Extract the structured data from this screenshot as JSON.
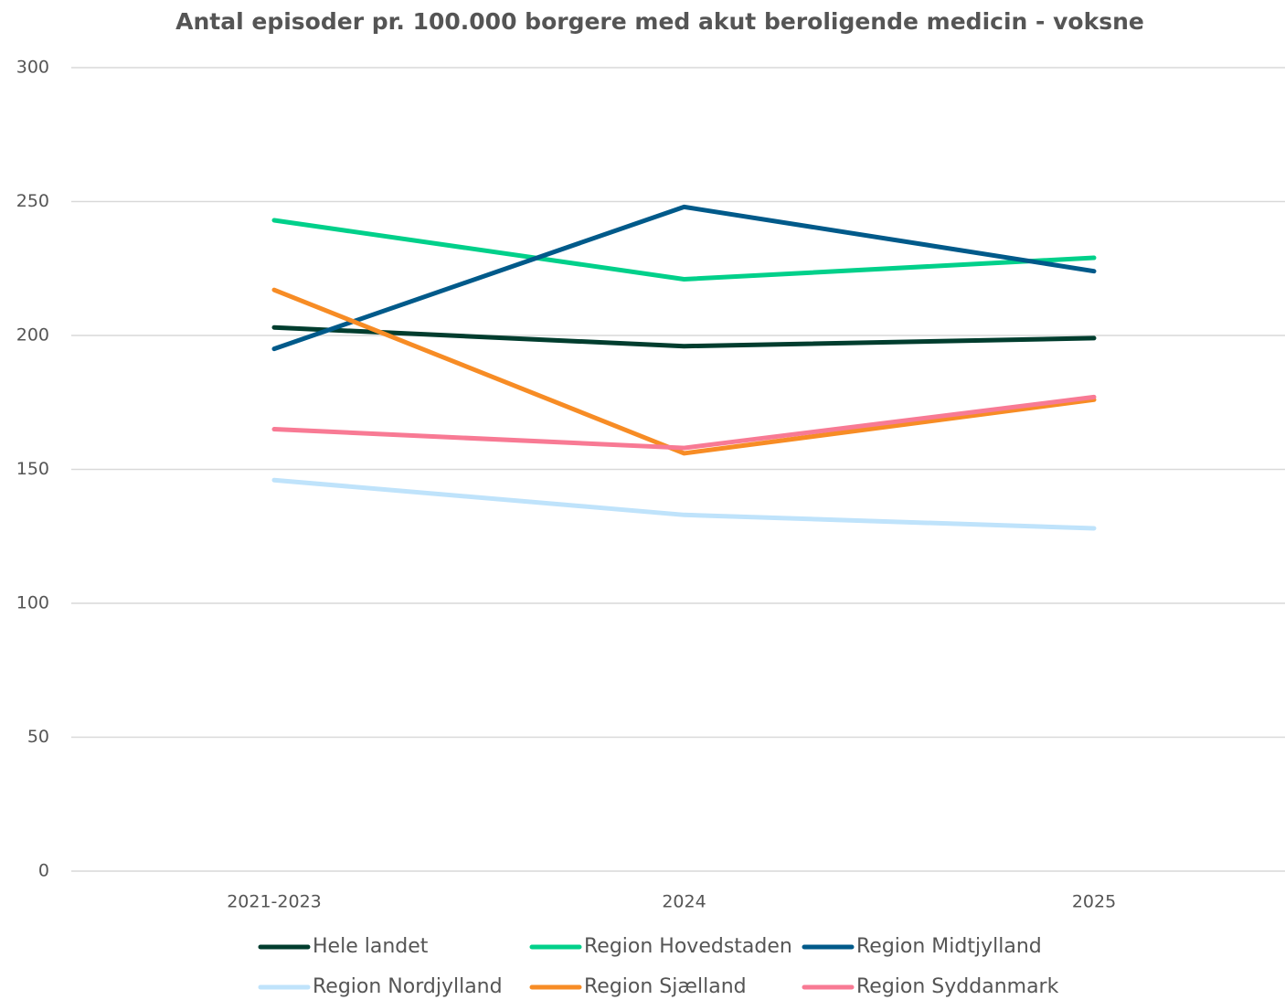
{
  "chart_data": {
    "type": "line",
    "title": "Antal episoder pr. 100.000 borgere med akut beroligende medicin - voksne",
    "categories": [
      "2021-2023",
      "2024",
      "2025"
    ],
    "series": [
      {
        "name": "Hele landet",
        "color": "#003d2e",
        "values": [
          203,
          196,
          199
        ]
      },
      {
        "name": "Region Hovedstaden",
        "color": "#00d08a",
        "values": [
          243,
          221,
          229
        ]
      },
      {
        "name": "Region Midtjylland",
        "color": "#005a8a",
        "values": [
          195,
          248,
          224
        ]
      },
      {
        "name": "Region Nordjylland",
        "color": "#bfe3fb",
        "values": [
          146,
          133,
          128
        ]
      },
      {
        "name": "Region Sjælland",
        "color": "#f78c25",
        "values": [
          217,
          156,
          176
        ]
      },
      {
        "name": "Region Syddanmark",
        "color": "#f87a94",
        "values": [
          165,
          158,
          177
        ]
      }
    ],
    "ylim": [
      0,
      300
    ],
    "yticks": [
      0,
      50,
      100,
      150,
      200,
      250,
      300
    ],
    "grid": true,
    "legend": "bottom"
  }
}
